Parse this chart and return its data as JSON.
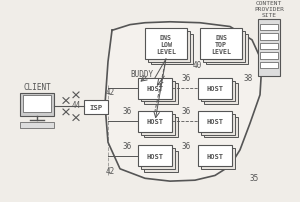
{
  "bg_color": "#f0ede8",
  "line_color": "#555555",
  "box_color": "#e8e4df",
  "title": "",
  "labels": {
    "client": "CLIENT",
    "isp": "ISP",
    "buddy": "BUDDY",
    "host": "HOST",
    "dns_low": "DNS\nLOW\nLEVEL",
    "dns_top": "DNS\nTOP\nLEVEL",
    "content": "CONTENT\nPROVIDER\nSITE"
  },
  "numbers": {
    "n35": "35",
    "n36": "36",
    "n38": "38",
    "n40": "40",
    "n42": "42",
    "n44": "44"
  }
}
